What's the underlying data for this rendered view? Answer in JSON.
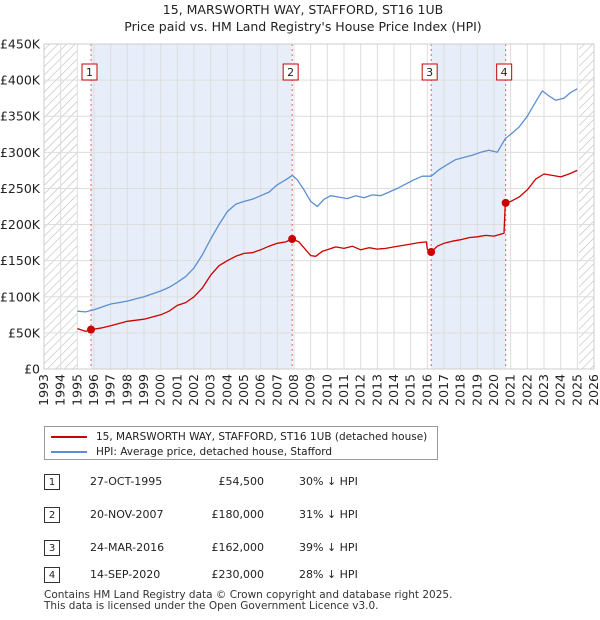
{
  "chart_data": {
    "type": "line",
    "title": "15, MARSWORTH WAY, STAFFORD, ST16 1UB",
    "subtitle": "Price paid vs. HM Land Registry's House Price Index (HPI)",
    "xlabel": "",
    "ylabel": "",
    "xlim": [
      1993,
      2026
    ],
    "ylim": [
      0,
      450000
    ],
    "x_ticks": [
      "1993",
      "1994",
      "1995",
      "1996",
      "1997",
      "1998",
      "1999",
      "2000",
      "2001",
      "2002",
      "2003",
      "2004",
      "2005",
      "2006",
      "2007",
      "2008",
      "2009",
      "2010",
      "2011",
      "2012",
      "2013",
      "2014",
      "2015",
      "2016",
      "2017",
      "2018",
      "2019",
      "2020",
      "2021",
      "2022",
      "2023",
      "2024",
      "2025",
      "2026"
    ],
    "y_ticks": [
      {
        "value": 0,
        "label": "£0"
      },
      {
        "value": 50000,
        "label": "£50K"
      },
      {
        "value": 100000,
        "label": "£100K"
      },
      {
        "value": 150000,
        "label": "£150K"
      },
      {
        "value": 200000,
        "label": "£200K"
      },
      {
        "value": 250000,
        "label": "£250K"
      },
      {
        "value": 300000,
        "label": "£300K"
      },
      {
        "value": 350000,
        "label": "£350K"
      },
      {
        "value": 400000,
        "label": "£400K"
      },
      {
        "value": 450000,
        "label": "£450K"
      }
    ],
    "data_start": 1995.0,
    "data_end": 2025.1,
    "grid": true,
    "series": [
      {
        "name": "15, MARSWORTH WAY, STAFFORD, ST16 1UB (detached house)",
        "color": "#cc0000",
        "points": [
          [
            1995.0,
            56000
          ],
          [
            1995.5,
            52000
          ],
          [
            1995.82,
            54500
          ],
          [
            1996.5,
            57000
          ],
          [
            1997.0,
            60000
          ],
          [
            1998.0,
            66000
          ],
          [
            1999.0,
            69000
          ],
          [
            2000.0,
            75000
          ],
          [
            2000.5,
            80000
          ],
          [
            2001.0,
            88000
          ],
          [
            2001.5,
            92000
          ],
          [
            2002.0,
            100000
          ],
          [
            2002.5,
            112000
          ],
          [
            2003.0,
            130000
          ],
          [
            2003.5,
            143000
          ],
          [
            2004.0,
            150000
          ],
          [
            2004.5,
            156000
          ],
          [
            2005.0,
            160000
          ],
          [
            2005.5,
            161000
          ],
          [
            2006.0,
            165000
          ],
          [
            2006.5,
            170000
          ],
          [
            2007.0,
            174000
          ],
          [
            2007.5,
            176000
          ],
          [
            2007.89,
            180000
          ],
          [
            2008.3,
            176000
          ],
          [
            2008.7,
            165000
          ],
          [
            2009.0,
            157000
          ],
          [
            2009.3,
            156000
          ],
          [
            2009.7,
            163000
          ],
          [
            2010.0,
            165000
          ],
          [
            2010.5,
            169000
          ],
          [
            2011.0,
            167000
          ],
          [
            2011.5,
            170000
          ],
          [
            2012.0,
            165000
          ],
          [
            2012.5,
            168000
          ],
          [
            2013.0,
            166000
          ],
          [
            2013.5,
            167000
          ],
          [
            2014.0,
            169000
          ],
          [
            2014.5,
            171000
          ],
          [
            2015.0,
            173000
          ],
          [
            2015.5,
            175000
          ],
          [
            2015.95,
            176000
          ],
          [
            2016.0,
            166000
          ],
          [
            2016.23,
            162000
          ],
          [
            2016.6,
            170000
          ],
          [
            2017.0,
            174000
          ],
          [
            2017.5,
            177000
          ],
          [
            2018.0,
            179000
          ],
          [
            2018.5,
            182000
          ],
          [
            2019.0,
            183000
          ],
          [
            2019.5,
            185000
          ],
          [
            2020.0,
            184000
          ],
          [
            2020.6,
            188000
          ],
          [
            2020.68,
            230000
          ],
          [
            2021.0,
            232000
          ],
          [
            2021.5,
            238000
          ],
          [
            2022.0,
            248000
          ],
          [
            2022.5,
            263000
          ],
          [
            2023.0,
            270000
          ],
          [
            2023.5,
            268000
          ],
          [
            2024.0,
            266000
          ],
          [
            2024.5,
            270000
          ],
          [
            2025.0,
            275000
          ]
        ]
      },
      {
        "name": "HPI: Average price, detached house, Stafford",
        "color": "#5b8fd0",
        "points": [
          [
            1995.0,
            80000
          ],
          [
            1995.5,
            79000
          ],
          [
            1996.0,
            82000
          ],
          [
            1996.5,
            86000
          ],
          [
            1997.0,
            90000
          ],
          [
            1997.5,
            92000
          ],
          [
            1998.0,
            94000
          ],
          [
            1998.5,
            97000
          ],
          [
            1999.0,
            100000
          ],
          [
            1999.5,
            104000
          ],
          [
            2000.0,
            108000
          ],
          [
            2000.5,
            113000
          ],
          [
            2001.0,
            120000
          ],
          [
            2001.5,
            128000
          ],
          [
            2002.0,
            140000
          ],
          [
            2002.5,
            158000
          ],
          [
            2003.0,
            180000
          ],
          [
            2003.5,
            200000
          ],
          [
            2004.0,
            218000
          ],
          [
            2004.5,
            228000
          ],
          [
            2005.0,
            232000
          ],
          [
            2005.5,
            235000
          ],
          [
            2006.0,
            240000
          ],
          [
            2006.5,
            245000
          ],
          [
            2007.0,
            255000
          ],
          [
            2007.5,
            262000
          ],
          [
            2007.89,
            268000
          ],
          [
            2008.2,
            262000
          ],
          [
            2008.6,
            248000
          ],
          [
            2009.0,
            232000
          ],
          [
            2009.4,
            225000
          ],
          [
            2009.8,
            235000
          ],
          [
            2010.2,
            240000
          ],
          [
            2010.7,
            238000
          ],
          [
            2011.2,
            236000
          ],
          [
            2011.7,
            240000
          ],
          [
            2012.2,
            237000
          ],
          [
            2012.7,
            241000
          ],
          [
            2013.2,
            240000
          ],
          [
            2013.7,
            245000
          ],
          [
            2014.2,
            250000
          ],
          [
            2014.7,
            256000
          ],
          [
            2015.2,
            262000
          ],
          [
            2015.7,
            267000
          ],
          [
            2016.23,
            267000
          ],
          [
            2016.7,
            276000
          ],
          [
            2017.2,
            283000
          ],
          [
            2017.7,
            290000
          ],
          [
            2018.2,
            293000
          ],
          [
            2018.7,
            296000
          ],
          [
            2019.2,
            300000
          ],
          [
            2019.7,
            303000
          ],
          [
            2020.2,
            300000
          ],
          [
            2020.68,
            319000
          ],
          [
            2021.0,
            325000
          ],
          [
            2021.5,
            335000
          ],
          [
            2022.0,
            350000
          ],
          [
            2022.5,
            370000
          ],
          [
            2022.9,
            385000
          ],
          [
            2023.3,
            378000
          ],
          [
            2023.7,
            372000
          ],
          [
            2024.2,
            375000
          ],
          [
            2024.6,
            383000
          ],
          [
            2025.0,
            388000
          ]
        ]
      }
    ],
    "markers": [
      {
        "id": "1",
        "x": 1995.82,
        "y": 54500
      },
      {
        "id": "2",
        "x": 2007.89,
        "y": 180000
      },
      {
        "id": "3",
        "x": 2016.23,
        "y": 162000
      },
      {
        "id": "4",
        "x": 2020.7,
        "y": 230000
      }
    ],
    "shaded_ranges": [
      [
        1995.82,
        2007.89
      ],
      [
        2016.23,
        2020.7
      ]
    ]
  },
  "legend": {
    "items": [
      {
        "label": "15, MARSWORTH WAY, STAFFORD, ST16 1UB (detached house)",
        "color": "#cc0000"
      },
      {
        "label": "HPI: Average price, detached house, Stafford",
        "color": "#5b8fd0"
      }
    ]
  },
  "transactions": [
    {
      "id": "1",
      "date": "27-OCT-1995",
      "price": "£54,500",
      "hpi": "30% ↓ HPI"
    },
    {
      "id": "2",
      "date": "20-NOV-2007",
      "price": "£180,000",
      "hpi": "31% ↓ HPI"
    },
    {
      "id": "3",
      "date": "24-MAR-2016",
      "price": "£162,000",
      "hpi": "39% ↓ HPI"
    },
    {
      "id": "4",
      "date": "14-SEP-2020",
      "price": "£230,000",
      "hpi": "28% ↓ HPI"
    }
  ],
  "footer": {
    "line1": "Contains HM Land Registry data © Crown copyright and database right 2025.",
    "line2": "This data is licensed under the Open Government Licence v3.0."
  }
}
